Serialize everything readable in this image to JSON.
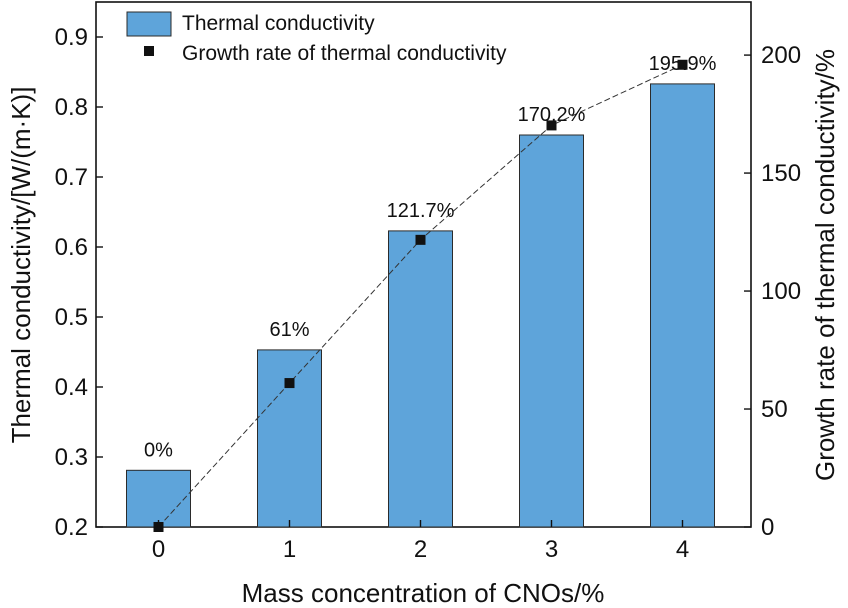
{
  "chart_data": {
    "type": "bar",
    "categories": [
      "0",
      "1",
      "2",
      "3",
      "4"
    ],
    "series": [
      {
        "name": "Thermal conductivity",
        "kind": "bar",
        "axis": "left",
        "values": [
          0.281,
          0.453,
          0.623,
          0.76,
          0.833
        ]
      },
      {
        "name": "Growth rate of thermal conductivity",
        "kind": "line-marker",
        "axis": "right",
        "values": [
          0,
          61,
          121.7,
          170.2,
          195.9
        ]
      }
    ],
    "data_labels": [
      "0%",
      "61%",
      "121.7%",
      "170.2%",
      "195.9%"
    ],
    "xlabel": "Mass concentration of CNOs/%",
    "ylabel": "Thermal conductivity/[W/(m·K)]",
    "y2label": "Growth rate of thermal conductivity/%",
    "ylim": [
      0.2,
      0.95
    ],
    "y2lim": [
      0,
      222.5
    ],
    "yticks": [
      0.2,
      0.3,
      0.4,
      0.5,
      0.6,
      0.7,
      0.8,
      0.9
    ],
    "ytick_labels": [
      "0.2",
      "0.3",
      "0.4",
      "0.5",
      "0.6",
      "0.7",
      "0.8",
      "0.9"
    ],
    "y2ticks": [
      0,
      50,
      100,
      150,
      200
    ],
    "y2tick_labels": [
      "0",
      "50",
      "100",
      "150",
      "200"
    ],
    "legend_position": "top-left",
    "grid": false,
    "colors": {
      "bar_fill": "#5ea4da",
      "bar_stroke": "#2b2b2b",
      "marker": "#111111",
      "line": "#333333"
    }
  }
}
